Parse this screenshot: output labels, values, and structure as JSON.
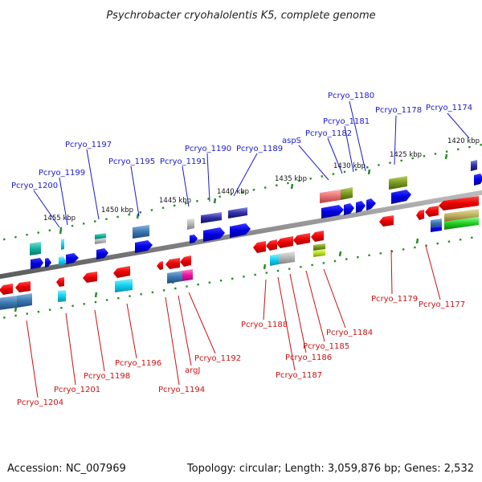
{
  "title": "Psychrobacter cryohalolentis K5, complete genome",
  "accession": "Accession: NC_007969",
  "summary": "Topology: circular; Length: 3,059,876 bp; Genes: 2,532",
  "colors": {
    "forward_label": "#1a1acc",
    "reverse_label": "#cc1111",
    "backbone": "#8a8a8a",
    "tick": "#2a8a2a"
  },
  "scale": {
    "unit": "kbp",
    "ticks": [
      "1420 kbp",
      "1425 kbp",
      "1430 kbp",
      "1435 kbp",
      "1440 kbp",
      "1445 kbp",
      "1450 kbp",
      "1455 kbp"
    ]
  },
  "forward_labels": [
    "Pcryo_1174",
    "Pcryo_1178",
    "Pcryo_1180",
    "Pcryo_1181",
    "Pcryo_1182",
    "aspS",
    "Pcryo_1189",
    "Pcryo_1190",
    "Pcryo_1191",
    "Pcryo_1195",
    "Pcryo_1197",
    "Pcryo_1199",
    "Pcryo_1200"
  ],
  "reverse_labels": [
    "Pcryo_1177",
    "Pcryo_1179",
    "Pcryo_1184",
    "Pcryo_1185",
    "Pcryo_1186",
    "Pcryo_1187",
    "Pcryo_1188",
    "Pcryo_1192",
    "argJ",
    "Pcryo_1194",
    "Pcryo_1196",
    "Pcryo_1198",
    "Pcryo_1201",
    "Pcryo_1204"
  ]
}
